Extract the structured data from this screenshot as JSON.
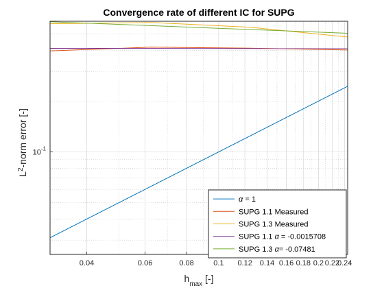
{
  "chart_data": {
    "type": "line",
    "title": "Convergence rate of different IC for SUPG",
    "xlabel": {
      "base": "h",
      "sub": "max",
      "unit": " [-]"
    },
    "ylabel": {
      "base": "L",
      "sup": "2",
      "rest": "-norm error [-]"
    },
    "xscale": "log",
    "yscale": "log",
    "xlim": [
      0.031,
      0.245
    ],
    "ylim": [
      0.0247,
      0.595
    ],
    "xticks": [
      {
        "value": 0.04,
        "label": "0.04"
      },
      {
        "value": 0.06,
        "label": "0.06"
      },
      {
        "value": 0.08,
        "label": "0.08"
      },
      {
        "value": 0.1,
        "label": "0.1"
      },
      {
        "value": 0.12,
        "label": "0.12"
      },
      {
        "value": 0.14,
        "label": "0.14"
      },
      {
        "value": 0.16,
        "label": "0.16"
      },
      {
        "value": 0.18,
        "label": "0.18"
      },
      {
        "value": 0.2,
        "label": "0.2"
      },
      {
        "value": 0.22,
        "label": "0.22"
      },
      {
        "value": 0.24,
        "label": "0.24"
      }
    ],
    "yticks": [
      {
        "value": 0.1,
        "base": "10",
        "exp": "-1"
      }
    ],
    "grid": true,
    "minor_grid": true,
    "legend_position": "bottom-right",
    "series": [
      {
        "name": "α = 1",
        "label_symbol": "α",
        "label_rest": " = 1",
        "color": "#0072BD",
        "x": [
          0.031,
          0.245
        ],
        "y": [
          0.031,
          0.245
        ]
      },
      {
        "name": "SUPG 1.1 Measured",
        "label_plain": "SUPG 1.1 Measured",
        "color": "#D95319",
        "x": [
          0.031,
          0.0625,
          0.125,
          0.245
        ],
        "y": [
          0.397,
          0.418,
          0.412,
          0.402
        ]
      },
      {
        "name": "SUPG 1.3 Measured",
        "label_plain": "SUPG 1.3 Measured",
        "color": "#EDB120",
        "x": [
          0.031,
          0.0625,
          0.125,
          0.245
        ],
        "y": [
          0.575,
          0.585,
          0.548,
          0.48
        ]
      },
      {
        "name": "SUPG 1.1 α = -0.0015708",
        "label_prefix": "SUPG 1.1 ",
        "label_symbol": "α",
        "label_rest": " = -0.0015708",
        "color": "#7E2F8E",
        "x": [
          0.031,
          0.245
        ],
        "y": [
          0.411,
          0.41
        ]
      },
      {
        "name": "SUPG 1.3 α= -0.07481",
        "label_prefix": "SUPG 1.3 ",
        "label_symbol": "α",
        "label_rest": "= -0.07481",
        "color": "#77AC30",
        "x": [
          0.031,
          0.245
        ],
        "y": [
          0.591,
          0.505
        ]
      }
    ]
  }
}
